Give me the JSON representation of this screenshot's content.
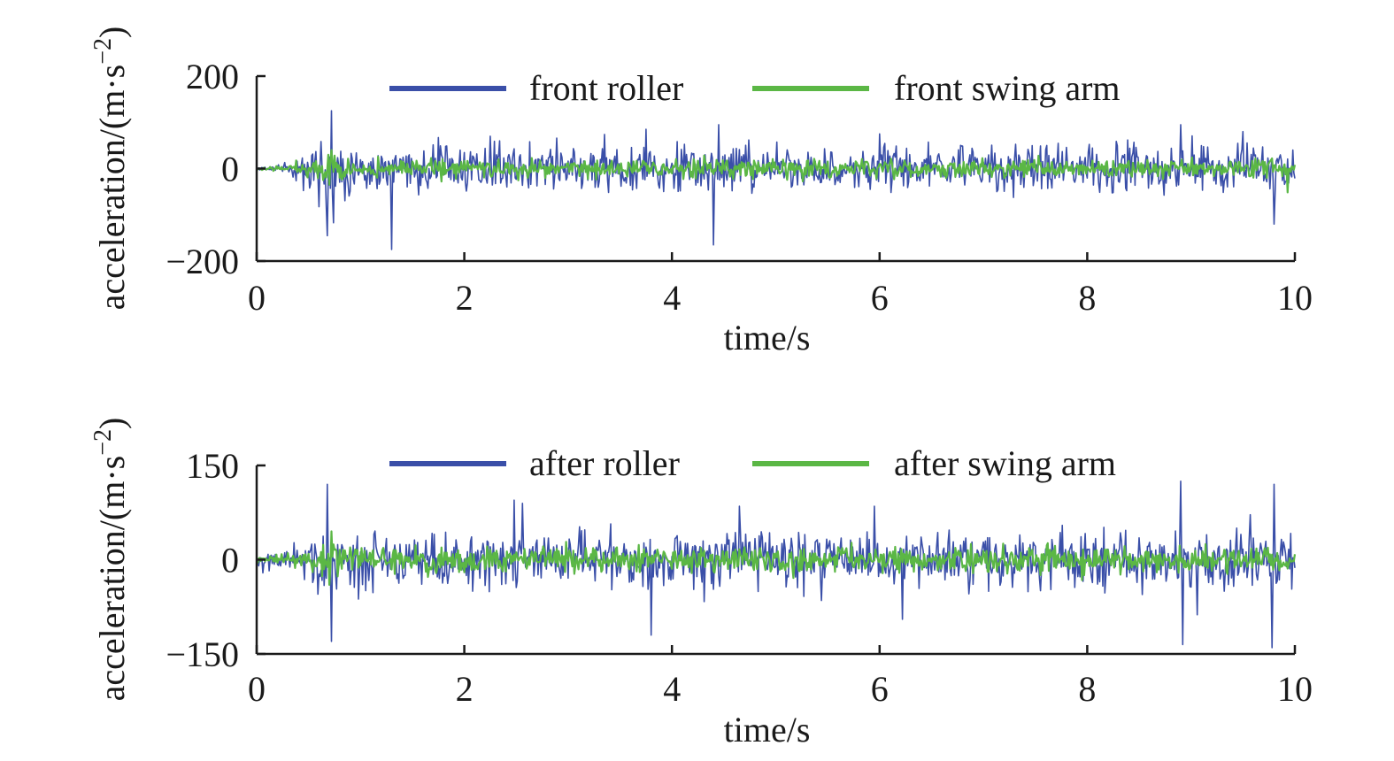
{
  "chart_data": [
    {
      "type": "line",
      "title": "",
      "xlabel": "time/s",
      "ylabel": "acceleration/(m·s−2)",
      "ylabel_parts": {
        "base": "acceleration/(m·s",
        "sup": "−2",
        "close": ")"
      },
      "xlim": [
        0,
        10
      ],
      "ylim": [
        -200,
        200
      ],
      "xticks": [
        0,
        2,
        4,
        6,
        8,
        10
      ],
      "xtick_labels": [
        "0",
        "2",
        "4",
        "6",
        "8",
        "10"
      ],
      "yticks": [
        -200,
        0,
        200
      ],
      "ytick_labels": [
        "−200",
        "0",
        "200"
      ],
      "grid": false,
      "legend_position": "top",
      "series": [
        {
          "name": "front roller",
          "color": "#3a4fa8",
          "kind": "vibration-signal",
          "sample_interval": 0.01,
          "noise_amplitude": 35,
          "seed": 11,
          "envelope": [
            [
              0,
              0.05
            ],
            [
              0.3,
              0.25
            ],
            [
              0.5,
              0.9
            ],
            [
              0.7,
              1.6
            ],
            [
              0.8,
              1.3
            ],
            [
              1.0,
              1.0
            ],
            [
              2.5,
              0.95
            ],
            [
              4.0,
              1.05
            ],
            [
              4.5,
              1.15
            ],
            [
              5.5,
              0.85
            ],
            [
              7.0,
              1.0
            ],
            [
              9.0,
              1.05
            ],
            [
              10.0,
              1.2
            ]
          ],
          "peaks": [
            [
              0.72,
              125
            ],
            [
              0.68,
              -145
            ],
            [
              1.3,
              -175
            ],
            [
              2.25,
              70
            ],
            [
              3.75,
              85
            ],
            [
              4.4,
              -165
            ],
            [
              4.45,
              95
            ],
            [
              6.0,
              75
            ],
            [
              8.9,
              95
            ],
            [
              9.5,
              80
            ],
            [
              9.8,
              -120
            ]
          ]
        },
        {
          "name": "front swing arm",
          "color": "#5bb745",
          "kind": "vibration-signal",
          "sample_interval": 0.01,
          "noise_amplitude": 14,
          "seed": 29,
          "envelope": [
            [
              0,
              0.15
            ],
            [
              0.3,
              0.4
            ],
            [
              0.5,
              0.9
            ],
            [
              0.7,
              1.8
            ],
            [
              0.8,
              1.2
            ],
            [
              1.0,
              1.0
            ],
            [
              10.0,
              1.0
            ]
          ],
          "peaks": [
            [
              0.72,
              40
            ],
            [
              0.7,
              -35
            ]
          ]
        }
      ]
    },
    {
      "type": "line",
      "title": "",
      "xlabel": "time/s",
      "ylabel": "acceleration/(m·s−2)",
      "ylabel_parts": {
        "base": "acceleration/(m·s",
        "sup": "−2",
        "close": ")"
      },
      "xlim": [
        0,
        10
      ],
      "ylim": [
        -150,
        150
      ],
      "xticks": [
        0,
        2,
        4,
        6,
        8,
        10
      ],
      "xtick_labels": [
        "0",
        "2",
        "4",
        "6",
        "8",
        "10"
      ],
      "yticks": [
        -150,
        0,
        150
      ],
      "ytick_labels": [
        "−150",
        "0",
        "150"
      ],
      "grid": false,
      "legend_position": "top",
      "series": [
        {
          "name": "after roller",
          "color": "#3a4fa8",
          "kind": "vibration-signal",
          "sample_interval": 0.01,
          "noise_amplitude": 30,
          "seed": 47,
          "envelope": [
            [
              0,
              0.2
            ],
            [
              0.3,
              0.5
            ],
            [
              0.5,
              0.9
            ],
            [
              0.7,
              1.5
            ],
            [
              0.8,
              1.2
            ],
            [
              1.0,
              1.0
            ],
            [
              3.5,
              1.0
            ],
            [
              4.5,
              1.15
            ],
            [
              5.5,
              1.0
            ],
            [
              7.0,
              1.05
            ],
            [
              9.0,
              1.1
            ],
            [
              10.0,
              1.2
            ]
          ],
          "peaks": [
            [
              0.68,
              120
            ],
            [
              0.72,
              -130
            ],
            [
              3.8,
              -120
            ],
            [
              4.65,
              85
            ],
            [
              5.95,
              85
            ],
            [
              8.9,
              125
            ],
            [
              8.92,
              -135
            ],
            [
              9.8,
              120
            ],
            [
              9.78,
              -140
            ]
          ]
        },
        {
          "name": "after swing arm",
          "color": "#5bb745",
          "kind": "vibration-signal",
          "sample_interval": 0.01,
          "noise_amplitude": 14,
          "seed": 83,
          "envelope": [
            [
              0,
              0.3
            ],
            [
              0.3,
              0.5
            ],
            [
              0.5,
              0.9
            ],
            [
              0.7,
              1.8
            ],
            [
              0.8,
              1.2
            ],
            [
              1.0,
              1.0
            ],
            [
              10.0,
              1.0
            ]
          ],
          "peaks": [
            [
              0.72,
              45
            ],
            [
              0.7,
              -40
            ]
          ]
        }
      ]
    }
  ]
}
